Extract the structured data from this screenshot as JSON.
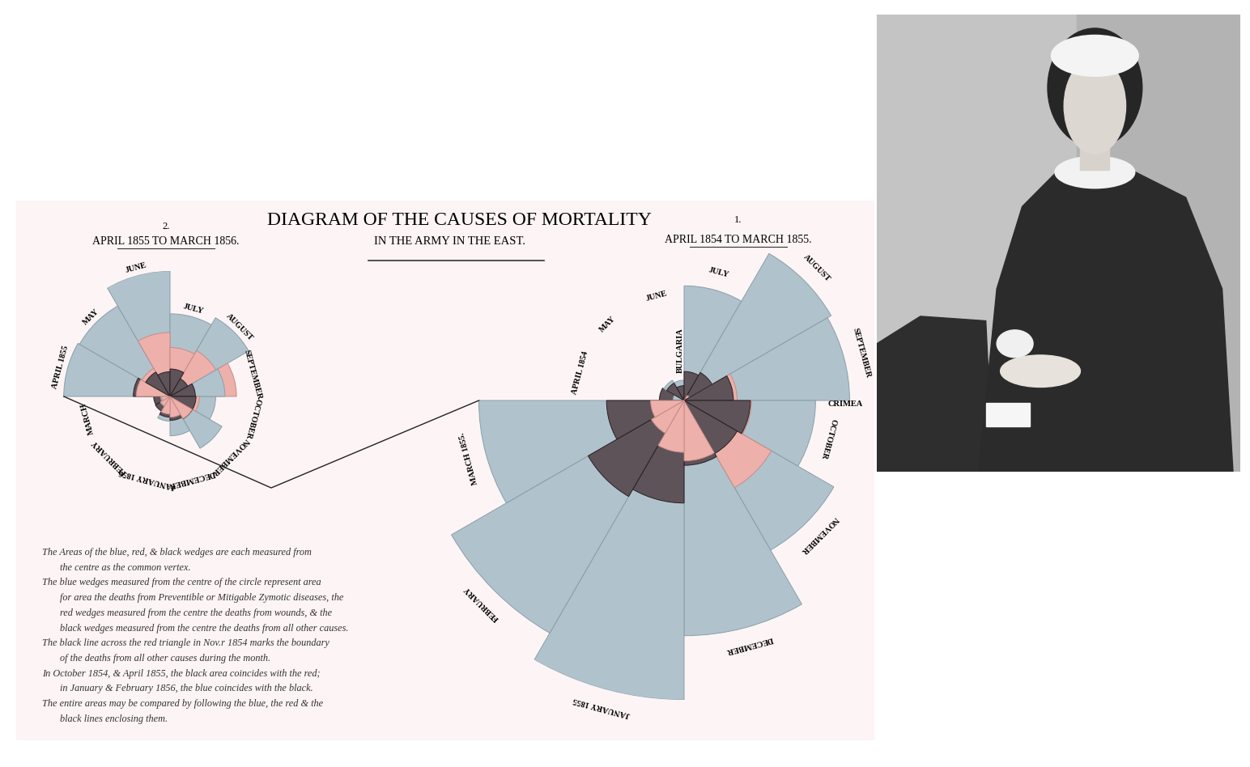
{
  "title": [
    "DIAGRAM OF THE CAUSES OF MORTALITY",
    "IN THE ARMY IN THE EAST."
  ],
  "chart_data": [
    {
      "type": "rose",
      "number": "1.",
      "subtitle": "APRIL 1854 TO MARCH 1855.",
      "categories": [
        "APRIL 1854",
        "MAY",
        "JUNE",
        "JULY",
        "AUGUST",
        "SEPTEMBER",
        "OCTOBER",
        "NOVEMBER",
        "DECEMBER",
        "JANUARY 1855",
        "FEBRUARY",
        "MARCH 1855."
      ],
      "series": [
        {
          "color": "#b0c3cc",
          "values": [
            1.4,
            6.2,
            4.7,
            150.0,
            328.5,
            312.2,
            197.0,
            340.6,
            631.5,
            1022.8,
            822.8,
            480.3
          ]
        },
        {
          "color": "#eeb0ab",
          "values": [
            0.0,
            0.0,
            0.0,
            0.0,
            0.4,
            32.1,
            51.7,
            115.8,
            41.7,
            30.7,
            16.3,
            12.8
          ]
        },
        {
          "color": "#5e5358",
          "values": [
            7.0,
            4.6,
            2.5,
            9.6,
            11.9,
            27.7,
            50.1,
            42.8,
            48.0,
            120.0,
            140.1,
            68.6
          ]
        }
      ],
      "annotations": [
        {
          "text": "BULGARIA",
          "before": "JULY"
        },
        {
          "text": "CRIMEA",
          "before": "OCTOBER"
        }
      ],
      "tick_labels": false
    },
    {
      "type": "rose",
      "number": "2.",
      "subtitle": "APRIL 1855 TO MARCH 1856.",
      "categories": [
        "APRIL 1855",
        "MAY",
        "JUNE",
        "JULY",
        "AUGUST",
        "SEPTEMBER",
        "OCTOBER",
        "NOVEMBER",
        "DECEMBER",
        "JANUARY 1856",
        "FEBRUARY",
        "MARCH"
      ],
      "series": [
        {
          "color": "#b0c3cc",
          "values": [
            177.5,
            171.8,
            247.6,
            107.5,
            129.9,
            47.5,
            32.8,
            56.5,
            24.4,
            9.6,
            2.0,
            1.4
          ]
        },
        {
          "color": "#eeb0ab",
          "values": [
            17.9,
            16.6,
            64.5,
            37.7,
            44.1,
            69.4,
            13.6,
            10.4,
            6.8,
            4.9,
            1.9,
            1.1
          ]
        },
        {
          "color": "#5e5358",
          "values": [
            21.2,
            12.5,
            9.6,
            11.9,
            6.6,
            10.1,
            10.6,
            10.6,
            9.0,
            6.7,
            4.5,
            4.2
          ]
        }
      ],
      "tick_labels": false
    }
  ],
  "notes": [
    [
      "The Areas of the blue, red, & black wedges are each measured from",
      "the centre as the common vertex."
    ],
    [
      "The blue wedges measured from the centre of the circle represent area",
      "for area the deaths from Preventible or Mitigable Zymotic diseases, the",
      "red wedges measured from the centre the deaths from wounds, & the",
      "black wedges measured from the centre the deaths from all other causes."
    ],
    [
      "The black line across the red triangle in Nov.r 1854 marks the boundary",
      "of the deaths from all other causes during the month."
    ],
    [
      "In October 1854, & April 1855, the black area coincides with the red;",
      "in January & February 1856, the blue coincides with the black."
    ],
    [
      "The entire areas may be compared by following the blue, the red & the",
      "black lines enclosing them."
    ]
  ]
}
